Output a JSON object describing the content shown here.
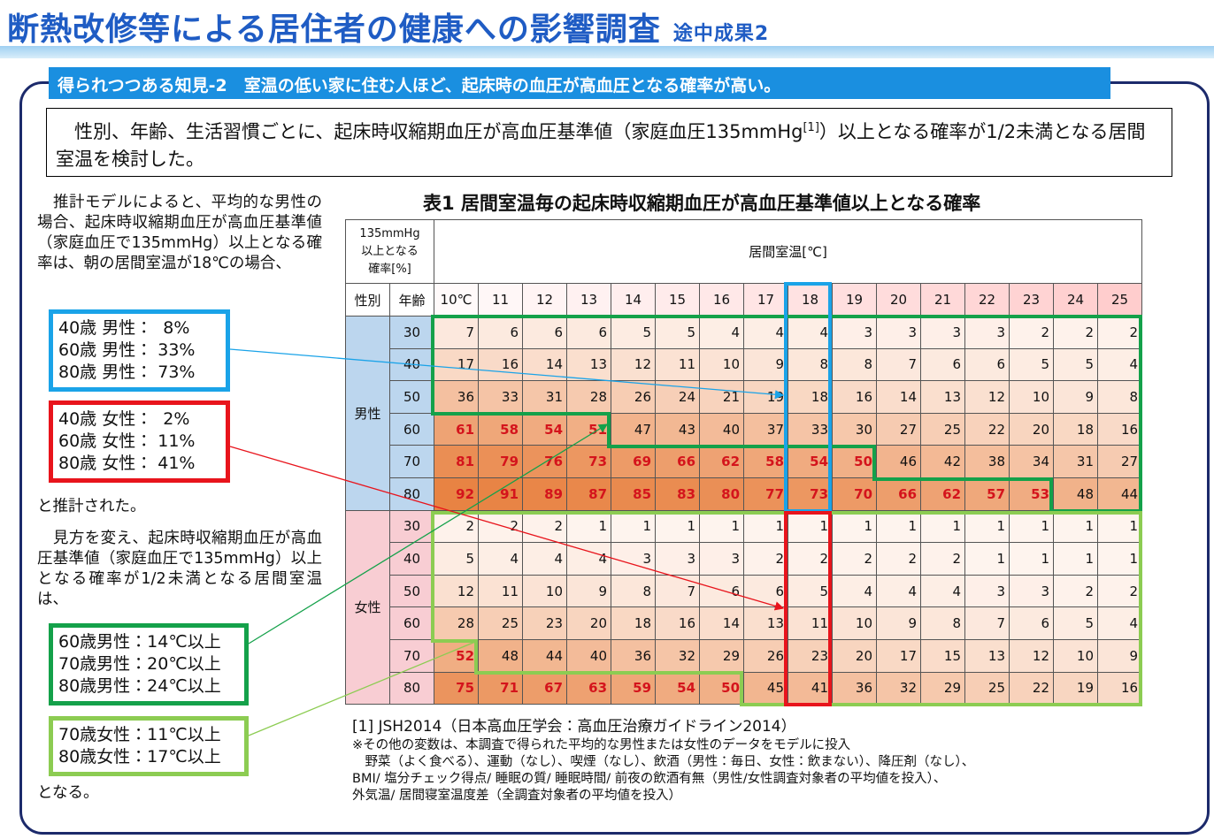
{
  "header": {
    "title": "断熱改修等による居住者の健康への影響調査",
    "subtitle": "途中成果2"
  },
  "banner": "得られつつある知見-2　室温の低い家に住む人ほど、起床時の血圧が高血圧となる確率が高い。",
  "intro": {
    "before": "　性別、年齢、生活習慣ごとに、起床時収縮期血圧が高血圧基準値（家庭血圧135mmHg",
    "ref": "[1]",
    "after": "）以上となる確率が1/2未満となる居間室温を検討した。"
  },
  "left": {
    "p1": "　推計モデルによると、平均的な男性の場合、起床時収縮期血圧が高血圧基準値（家庭血圧で135mmHg）以上となる確率は、朝の居間室温が18℃の場合、",
    "male_box": [
      "40歳 男性：  8%",
      "60歳 男性： 33%",
      "80歳 男性： 73%"
    ],
    "female_box": [
      "40歳 女性：  2%",
      "60歳 女性： 11%",
      "80歳 女性： 41%"
    ],
    "p2": "と推計された。",
    "p3": "　見方を変え、起床時収縮期血圧が高血圧基準値（家庭血圧で135mmHg）以上となる確率が1/2未満となる居間室温は、",
    "male_threshold_box": [
      "60歳男性：14℃以上",
      "70歳男性：20℃以上",
      "80歳男性：24℃以上"
    ],
    "female_threshold_box": [
      "70歳女性：11℃以上",
      "80歳女性：17℃以上"
    ],
    "p4": "となる。"
  },
  "table": {
    "title": "表1 居間室温毎の起床時収縮期血圧が高血圧基準値以上となる確率",
    "corner": [
      "135mmHg",
      "以上となる",
      "確率[%]"
    ],
    "temp_header": "居間室温[℃]",
    "col_heads": [
      "性別",
      "年齢"
    ],
    "temps": [
      "10℃",
      "11",
      "12",
      "13",
      "14",
      "15",
      "16",
      "17",
      "18",
      "19",
      "20",
      "21",
      "22",
      "23",
      "24",
      "25"
    ],
    "groups": [
      {
        "name": "男性",
        "rows": [
          {
            "age": "30",
            "values": [
              7,
              6,
              6,
              6,
              5,
              5,
              4,
              4,
              4,
              3,
              3,
              3,
              3,
              2,
              2,
              2
            ]
          },
          {
            "age": "40",
            "values": [
              17,
              16,
              14,
              13,
              12,
              11,
              10,
              9,
              8,
              8,
              7,
              6,
              6,
              5,
              5,
              4
            ]
          },
          {
            "age": "50",
            "values": [
              36,
              33,
              31,
              28,
              26,
              24,
              21,
              19,
              18,
              16,
              14,
              13,
              12,
              10,
              9,
              8
            ]
          },
          {
            "age": "60",
            "values": [
              61,
              58,
              54,
              51,
              47,
              43,
              40,
              37,
              33,
              30,
              27,
              25,
              22,
              20,
              18,
              16
            ]
          },
          {
            "age": "70",
            "values": [
              81,
              79,
              76,
              73,
              69,
              66,
              62,
              58,
              54,
              50,
              46,
              42,
              38,
              34,
              31,
              27
            ]
          },
          {
            "age": "80",
            "values": [
              92,
              91,
              89,
              87,
              85,
              83,
              80,
              77,
              73,
              70,
              66,
              62,
              57,
              53,
              48,
              44
            ]
          }
        ]
      },
      {
        "name": "女性",
        "rows": [
          {
            "age": "30",
            "values": [
              2,
              2,
              2,
              1,
              1,
              1,
              1,
              1,
              1,
              1,
              1,
              1,
              1,
              1,
              1,
              1
            ]
          },
          {
            "age": "40",
            "values": [
              5,
              4,
              4,
              4,
              3,
              3,
              3,
              2,
              2,
              2,
              2,
              2,
              1,
              1,
              1,
              1
            ]
          },
          {
            "age": "50",
            "values": [
              12,
              11,
              10,
              9,
              8,
              7,
              6,
              6,
              5,
              4,
              4,
              4,
              3,
              3,
              2,
              2
            ]
          },
          {
            "age": "60",
            "values": [
              28,
              25,
              23,
              20,
              18,
              16,
              14,
              13,
              11,
              10,
              9,
              8,
              7,
              6,
              5,
              4
            ]
          },
          {
            "age": "70",
            "values": [
              52,
              48,
              44,
              40,
              36,
              32,
              29,
              26,
              23,
              20,
              17,
              15,
              13,
              12,
              10,
              9
            ]
          },
          {
            "age": "80",
            "values": [
              75,
              71,
              67,
              63,
              59,
              54,
              50,
              45,
              41,
              36,
              32,
              29,
              25,
              22,
              19,
              16
            ]
          }
        ]
      }
    ]
  },
  "footnotes": {
    "ref": "[1] JSH2014（日本高血圧学会：高血圧治療ガイドライン2014）",
    "lines": [
      "※その他の変数は、本調査で得られた平均的な男性または女性のデータをモデルに投入",
      "　野菜（よく食べる）、運動（なし）、喫煙（なし）、飲酒（男性：毎日、女性：飲まない）、降圧剤（なし）、",
      "BMI/ 塩分チェック得点/ 睡眠の質/ 睡眠時間/  前夜の飲酒有無（男性/女性調査対象者の平均値を投入）、",
      "外気温/ 居間寝室温度差（全調査対象者の平均値を投入）"
    ]
  }
}
